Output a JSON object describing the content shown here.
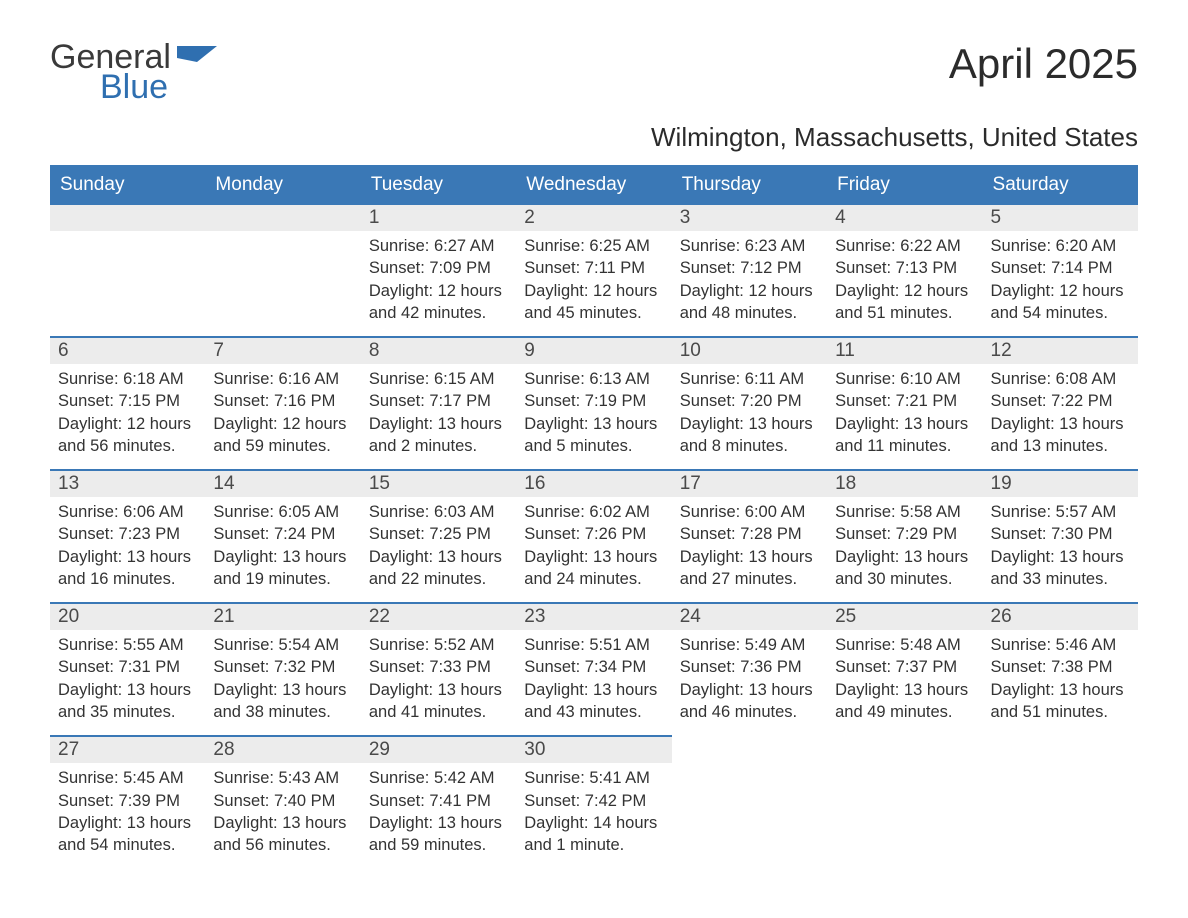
{
  "logo": {
    "word1": "General",
    "word2": "Blue",
    "flag_color": "#2f6fb0"
  },
  "title": "April 2025",
  "location": "Wilmington, Massachusetts, United States",
  "header_bg": "#3a78b6",
  "header_fg": "#ffffff",
  "daynum_bg": "#ececec",
  "row_border": "#3a78b6",
  "text_color": "#333333",
  "weekdays": [
    "Sunday",
    "Monday",
    "Tuesday",
    "Wednesday",
    "Thursday",
    "Friday",
    "Saturday"
  ],
  "weeks": [
    [
      null,
      null,
      {
        "n": "1",
        "sunrise": "6:27 AM",
        "sunset": "7:09 PM",
        "daylight": "12 hours and 42 minutes."
      },
      {
        "n": "2",
        "sunrise": "6:25 AM",
        "sunset": "7:11 PM",
        "daylight": "12 hours and 45 minutes."
      },
      {
        "n": "3",
        "sunrise": "6:23 AM",
        "sunset": "7:12 PM",
        "daylight": "12 hours and 48 minutes."
      },
      {
        "n": "4",
        "sunrise": "6:22 AM",
        "sunset": "7:13 PM",
        "daylight": "12 hours and 51 minutes."
      },
      {
        "n": "5",
        "sunrise": "6:20 AM",
        "sunset": "7:14 PM",
        "daylight": "12 hours and 54 minutes."
      }
    ],
    [
      {
        "n": "6",
        "sunrise": "6:18 AM",
        "sunset": "7:15 PM",
        "daylight": "12 hours and 56 minutes."
      },
      {
        "n": "7",
        "sunrise": "6:16 AM",
        "sunset": "7:16 PM",
        "daylight": "12 hours and 59 minutes."
      },
      {
        "n": "8",
        "sunrise": "6:15 AM",
        "sunset": "7:17 PM",
        "daylight": "13 hours and 2 minutes."
      },
      {
        "n": "9",
        "sunrise": "6:13 AM",
        "sunset": "7:19 PM",
        "daylight": "13 hours and 5 minutes."
      },
      {
        "n": "10",
        "sunrise": "6:11 AM",
        "sunset": "7:20 PM",
        "daylight": "13 hours and 8 minutes."
      },
      {
        "n": "11",
        "sunrise": "6:10 AM",
        "sunset": "7:21 PM",
        "daylight": "13 hours and 11 minutes."
      },
      {
        "n": "12",
        "sunrise": "6:08 AM",
        "sunset": "7:22 PM",
        "daylight": "13 hours and 13 minutes."
      }
    ],
    [
      {
        "n": "13",
        "sunrise": "6:06 AM",
        "sunset": "7:23 PM",
        "daylight": "13 hours and 16 minutes."
      },
      {
        "n": "14",
        "sunrise": "6:05 AM",
        "sunset": "7:24 PM",
        "daylight": "13 hours and 19 minutes."
      },
      {
        "n": "15",
        "sunrise": "6:03 AM",
        "sunset": "7:25 PM",
        "daylight": "13 hours and 22 minutes."
      },
      {
        "n": "16",
        "sunrise": "6:02 AM",
        "sunset": "7:26 PM",
        "daylight": "13 hours and 24 minutes."
      },
      {
        "n": "17",
        "sunrise": "6:00 AM",
        "sunset": "7:28 PM",
        "daylight": "13 hours and 27 minutes."
      },
      {
        "n": "18",
        "sunrise": "5:58 AM",
        "sunset": "7:29 PM",
        "daylight": "13 hours and 30 minutes."
      },
      {
        "n": "19",
        "sunrise": "5:57 AM",
        "sunset": "7:30 PM",
        "daylight": "13 hours and 33 minutes."
      }
    ],
    [
      {
        "n": "20",
        "sunrise": "5:55 AM",
        "sunset": "7:31 PM",
        "daylight": "13 hours and 35 minutes."
      },
      {
        "n": "21",
        "sunrise": "5:54 AM",
        "sunset": "7:32 PM",
        "daylight": "13 hours and 38 minutes."
      },
      {
        "n": "22",
        "sunrise": "5:52 AM",
        "sunset": "7:33 PM",
        "daylight": "13 hours and 41 minutes."
      },
      {
        "n": "23",
        "sunrise": "5:51 AM",
        "sunset": "7:34 PM",
        "daylight": "13 hours and 43 minutes."
      },
      {
        "n": "24",
        "sunrise": "5:49 AM",
        "sunset": "7:36 PM",
        "daylight": "13 hours and 46 minutes."
      },
      {
        "n": "25",
        "sunrise": "5:48 AM",
        "sunset": "7:37 PM",
        "daylight": "13 hours and 49 minutes."
      },
      {
        "n": "26",
        "sunrise": "5:46 AM",
        "sunset": "7:38 PM",
        "daylight": "13 hours and 51 minutes."
      }
    ],
    [
      {
        "n": "27",
        "sunrise": "5:45 AM",
        "sunset": "7:39 PM",
        "daylight": "13 hours and 54 minutes."
      },
      {
        "n": "28",
        "sunrise": "5:43 AM",
        "sunset": "7:40 PM",
        "daylight": "13 hours and 56 minutes."
      },
      {
        "n": "29",
        "sunrise": "5:42 AM",
        "sunset": "7:41 PM",
        "daylight": "13 hours and 59 minutes."
      },
      {
        "n": "30",
        "sunrise": "5:41 AM",
        "sunset": "7:42 PM",
        "daylight": "14 hours and 1 minute."
      },
      null,
      null,
      null
    ]
  ]
}
